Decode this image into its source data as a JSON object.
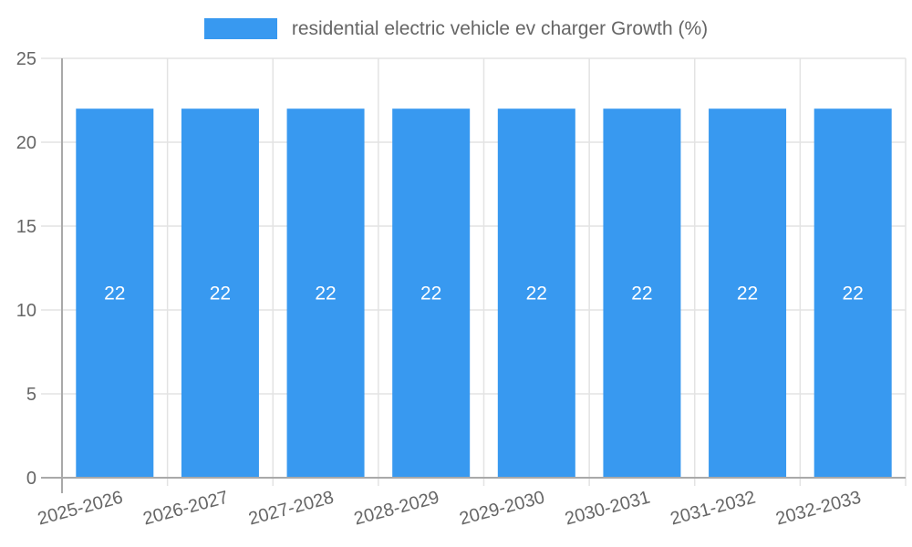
{
  "legend": {
    "label": "residential electric vehicle ev charger Growth (%)"
  },
  "colors": {
    "bar": "#3899F0",
    "grid": "#E3E3E3",
    "axis": "#A9A9A9",
    "tick_text": "#666666",
    "bar_label_text": "#FFFFFF",
    "legend_text": "#666666",
    "background": "#FFFFFF"
  },
  "chart_data": {
    "type": "bar",
    "title": "residential electric vehicle ev charger Growth (%)",
    "categories": [
      "2025-2026",
      "2026-2027",
      "2027-2028",
      "2028-2029",
      "2029-2030",
      "2030-2031",
      "2031-2032",
      "2032-2033"
    ],
    "series": [
      {
        "name": "residential electric vehicle ev charger Growth (%)",
        "values": [
          22,
          22,
          22,
          22,
          22,
          22,
          22,
          22
        ]
      }
    ],
    "value_labels": [
      "22",
      "22",
      "22",
      "22",
      "22",
      "22",
      "22",
      "22"
    ],
    "xlabel": "",
    "ylabel": "",
    "ylim": [
      0,
      25
    ],
    "yticks": [
      0,
      5,
      10,
      15,
      20,
      25
    ],
    "grid": true,
    "legend_position": "top",
    "x_tick_rotation_deg": -15
  }
}
